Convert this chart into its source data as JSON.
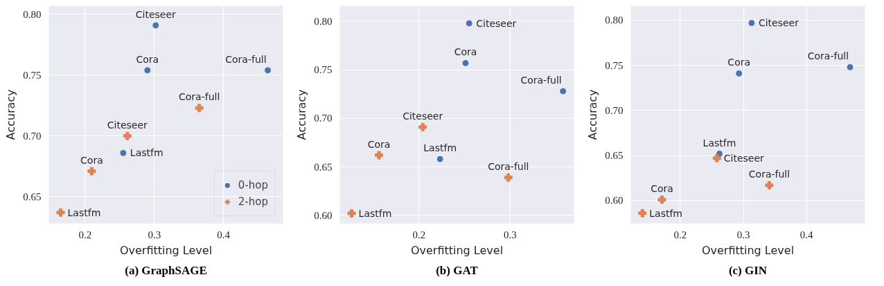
{
  "chart_data": [
    {
      "type": "scatter",
      "title": "(a) GraphSAGE",
      "xlabel": "Overfitting Level",
      "ylabel": "Accuracy",
      "grid": true,
      "legend": "bottom right",
      "xlim": [
        0.1475,
        0.486
      ],
      "ylim": [
        0.628,
        0.807
      ],
      "xticks": [
        0.2,
        0.3,
        0.4
      ],
      "yticks": [
        {
          "value": 0.65,
          "label": "0.65"
        },
        {
          "value": 0.7,
          "label": "0.70"
        },
        {
          "value": 0.75,
          "label": "0.75"
        },
        {
          "value": 0.8,
          "label": "0.80"
        }
      ],
      "series": [
        {
          "name": "0-hop",
          "color": "#4c72b0",
          "marker": "circle",
          "x": [
            0.302,
            0.29,
            0.464,
            0.255
          ],
          "values": [
            0.791,
            0.754,
            0.754,
            0.686
          ]
        },
        {
          "name": "2-hop",
          "color": "#dd8452",
          "marker": "cross",
          "x": [
            0.365,
            0.261,
            0.2095,
            0.1646
          ],
          "values": [
            0.723,
            0.7,
            0.671,
            0.637
          ]
        }
      ],
      "annotations": [
        {
          "text": "Citeseer",
          "x": 0.302,
          "y": 0.791
        },
        {
          "text": "Cora",
          "x": 0.29,
          "y": 0.754
        },
        {
          "text": "Cora-full",
          "x": 0.464,
          "y": 0.754
        },
        {
          "text": "Lastfm",
          "x": 0.255,
          "y": 0.686
        },
        {
          "text": "Cora-full",
          "x": 0.365,
          "y": 0.723
        },
        {
          "text": "Citeseer",
          "x": 0.261,
          "y": 0.7
        },
        {
          "text": "Cora",
          "x": 0.2095,
          "y": 0.671
        },
        {
          "text": "Lastfm",
          "x": 0.1646,
          "y": 0.637
        }
      ]
    },
    {
      "type": "scatter",
      "title": "(b) GAT",
      "xlabel": "Overfitting Level",
      "ylabel": "Accuracy",
      "grid": true,
      "xlim": [
        0.113,
        0.37
      ],
      "ylim": [
        0.5916,
        0.816
      ],
      "xticks": [
        0.2,
        0.3
      ],
      "yticks": [
        {
          "value": 0.6,
          "label": "0.60"
        },
        {
          "value": 0.65,
          "label": "0.65"
        },
        {
          "value": 0.7,
          "label": "0.70"
        },
        {
          "value": 0.75,
          "label": "0.75"
        },
        {
          "value": 0.8,
          "label": "0.80"
        }
      ],
      "series": [
        {
          "color": "#4c72b0",
          "marker": "circle",
          "x": [
            0.255,
            0.251,
            0.358,
            0.223
          ],
          "values": [
            0.798,
            0.757,
            0.728,
            0.658
          ]
        },
        {
          "color": "#dd8452",
          "marker": "cross",
          "x": [
            0.204,
            0.156,
            0.298,
            0.126
          ],
          "values": [
            0.691,
            0.662,
            0.639,
            0.602
          ]
        }
      ],
      "annotations": [
        {
          "text": "Citeseer",
          "x": 0.255,
          "y": 0.798
        },
        {
          "text": "Cora",
          "x": 0.251,
          "y": 0.757
        },
        {
          "text": "Cora-full",
          "x": 0.358,
          "y": 0.728
        },
        {
          "text": "Lastfm",
          "x": 0.223,
          "y": 0.658
        },
        {
          "text": "Citeseer",
          "x": 0.204,
          "y": 0.691
        },
        {
          "text": "Cora",
          "x": 0.156,
          "y": 0.662
        },
        {
          "text": "Cora-full",
          "x": 0.298,
          "y": 0.639
        },
        {
          "text": "Lastfm",
          "x": 0.126,
          "y": 0.602
        }
      ]
    },
    {
      "type": "scatter",
      "title": "(c) GIN",
      "xlabel": "Overfitting Level",
      "ylabel": "Accuracy",
      "grid": true,
      "xlim": [
        0.1216,
        0.4925
      ],
      "ylim": [
        0.5746,
        0.816
      ],
      "xticks": [
        0.2,
        0.3,
        0.4
      ],
      "yticks": [
        {
          "value": 0.6,
          "label": "0.60"
        },
        {
          "value": 0.65,
          "label": "0.65"
        },
        {
          "value": 0.7,
          "label": "0.70"
        },
        {
          "value": 0.75,
          "label": "0.75"
        },
        {
          "value": 0.8,
          "label": "0.80"
        }
      ],
      "series": [
        {
          "color": "#4c72b0",
          "marker": "circle",
          "x": [
            0.313,
            0.293,
            0.469,
            0.262
          ],
          "values": [
            0.797,
            0.741,
            0.748,
            0.652
          ]
        },
        {
          "color": "#dd8452",
          "marker": "cross",
          "x": [
            0.14,
            0.171,
            0.258,
            0.341
          ],
          "values": [
            0.586,
            0.601,
            0.647,
            0.617
          ]
        }
      ],
      "annotations": [
        {
          "text": "Citeseer",
          "x": 0.313,
          "y": 0.797
        },
        {
          "text": "Cora",
          "x": 0.293,
          "y": 0.741
        },
        {
          "text": "Cora-full",
          "x": 0.469,
          "y": 0.748
        },
        {
          "text": "Lastfm",
          "x": 0.262,
          "y": 0.652
        },
        {
          "text": "Lastfm",
          "x": 0.14,
          "y": 0.586
        },
        {
          "text": "Cora",
          "x": 0.171,
          "y": 0.601
        },
        {
          "text": "Citeseer",
          "x": 0.258,
          "y": 0.647
        },
        {
          "text": "Cora-full",
          "x": 0.341,
          "y": 0.617
        }
      ]
    }
  ]
}
